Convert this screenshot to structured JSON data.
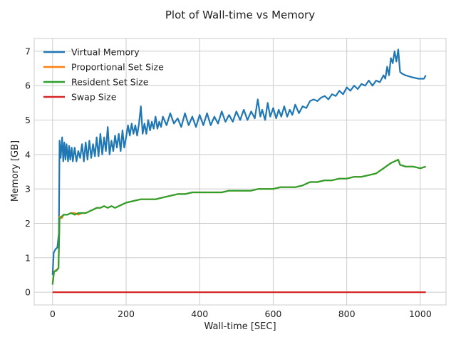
{
  "chart_data": {
    "type": "line",
    "title": "Plot of Wall-time vs Memory",
    "xlabel": "Wall-time [SEC]",
    "ylabel": "Memory [GB]",
    "xlim": [
      -50,
      1070
    ],
    "ylim": [
      -0.37,
      7.37
    ],
    "xticks": [
      0,
      200,
      400,
      600,
      800,
      1000
    ],
    "yticks": [
      0,
      1,
      2,
      3,
      4,
      5,
      6,
      7
    ],
    "grid": true,
    "legend_position": "top-left",
    "series": [
      {
        "name": "Virtual Memory",
        "color": "#1f77b4",
        "points": [
          [
            0,
            0.5
          ],
          [
            3,
            1.15
          ],
          [
            8,
            1.25
          ],
          [
            13,
            1.3
          ],
          [
            17,
            1.7
          ],
          [
            19,
            4.4
          ],
          [
            22,
            3.9
          ],
          [
            26,
            4.5
          ],
          [
            29,
            3.8
          ],
          [
            32,
            4.35
          ],
          [
            35,
            3.85
          ],
          [
            38,
            4.3
          ],
          [
            42,
            3.8
          ],
          [
            45,
            4.25
          ],
          [
            48,
            3.85
          ],
          [
            52,
            4.2
          ],
          [
            55,
            3.8
          ],
          [
            60,
            4.2
          ],
          [
            65,
            3.8
          ],
          [
            70,
            4.1
          ],
          [
            75,
            3.9
          ],
          [
            80,
            4.3
          ],
          [
            85,
            3.8
          ],
          [
            90,
            4.35
          ],
          [
            95,
            3.85
          ],
          [
            100,
            4.4
          ],
          [
            105,
            3.9
          ],
          [
            110,
            4.3
          ],
          [
            115,
            3.95
          ],
          [
            120,
            4.5
          ],
          [
            125,
            3.95
          ],
          [
            130,
            4.6
          ],
          [
            135,
            4.0
          ],
          [
            140,
            4.5
          ],
          [
            145,
            4.1
          ],
          [
            150,
            4.8
          ],
          [
            155,
            4.0
          ],
          [
            160,
            4.4
          ],
          [
            165,
            4.1
          ],
          [
            170,
            4.55
          ],
          [
            175,
            4.2
          ],
          [
            180,
            4.6
          ],
          [
            185,
            4.1
          ],
          [
            190,
            4.7
          ],
          [
            195,
            4.2
          ],
          [
            200,
            4.5
          ],
          [
            205,
            4.85
          ],
          [
            210,
            4.55
          ],
          [
            215,
            4.9
          ],
          [
            220,
            4.6
          ],
          [
            225,
            4.85
          ],
          [
            230,
            4.55
          ],
          [
            235,
            4.9
          ],
          [
            240,
            5.4
          ],
          [
            245,
            4.6
          ],
          [
            250,
            4.9
          ],
          [
            255,
            4.6
          ],
          [
            260,
            5.0
          ],
          [
            265,
            4.7
          ],
          [
            270,
            4.95
          ],
          [
            275,
            4.75
          ],
          [
            280,
            5.1
          ],
          [
            285,
            4.75
          ],
          [
            290,
            4.95
          ],
          [
            295,
            4.8
          ],
          [
            300,
            5.1
          ],
          [
            310,
            4.85
          ],
          [
            320,
            5.2
          ],
          [
            330,
            4.9
          ],
          [
            340,
            5.05
          ],
          [
            350,
            4.8
          ],
          [
            360,
            5.2
          ],
          [
            370,
            4.85
          ],
          [
            380,
            5.1
          ],
          [
            390,
            4.8
          ],
          [
            400,
            5.15
          ],
          [
            410,
            4.85
          ],
          [
            420,
            5.2
          ],
          [
            430,
            4.85
          ],
          [
            440,
            5.1
          ],
          [
            450,
            4.9
          ],
          [
            460,
            5.25
          ],
          [
            470,
            4.95
          ],
          [
            480,
            5.15
          ],
          [
            490,
            4.95
          ],
          [
            500,
            5.25
          ],
          [
            510,
            5.0
          ],
          [
            520,
            5.3
          ],
          [
            530,
            5.0
          ],
          [
            540,
            5.25
          ],
          [
            550,
            5.05
          ],
          [
            558,
            5.6
          ],
          [
            565,
            5.1
          ],
          [
            570,
            5.3
          ],
          [
            578,
            5.0
          ],
          [
            585,
            5.5
          ],
          [
            592,
            5.1
          ],
          [
            600,
            5.35
          ],
          [
            608,
            5.05
          ],
          [
            615,
            5.3
          ],
          [
            622,
            5.1
          ],
          [
            630,
            5.4
          ],
          [
            638,
            5.1
          ],
          [
            645,
            5.3
          ],
          [
            652,
            5.15
          ],
          [
            660,
            5.45
          ],
          [
            670,
            5.2
          ],
          [
            680,
            5.4
          ],
          [
            690,
            5.35
          ],
          [
            700,
            5.55
          ],
          [
            710,
            5.6
          ],
          [
            720,
            5.55
          ],
          [
            730,
            5.65
          ],
          [
            740,
            5.7
          ],
          [
            750,
            5.6
          ],
          [
            760,
            5.75
          ],
          [
            770,
            5.7
          ],
          [
            780,
            5.85
          ],
          [
            790,
            5.75
          ],
          [
            800,
            5.95
          ],
          [
            810,
            5.85
          ],
          [
            820,
            6.0
          ],
          [
            830,
            5.9
          ],
          [
            840,
            6.05
          ],
          [
            850,
            6.0
          ],
          [
            860,
            6.15
          ],
          [
            870,
            6.0
          ],
          [
            880,
            6.15
          ],
          [
            890,
            6.1
          ],
          [
            900,
            6.3
          ],
          [
            905,
            6.2
          ],
          [
            910,
            6.55
          ],
          [
            915,
            6.3
          ],
          [
            920,
            6.8
          ],
          [
            925,
            6.65
          ],
          [
            930,
            7.0
          ],
          [
            935,
            6.7
          ],
          [
            940,
            7.05
          ],
          [
            945,
            6.4
          ],
          [
            950,
            6.35
          ],
          [
            960,
            6.3
          ],
          [
            975,
            6.25
          ],
          [
            995,
            6.2
          ],
          [
            1005,
            6.2
          ],
          [
            1010,
            6.2
          ],
          [
            1015,
            6.3
          ]
        ]
      },
      {
        "name": "Proportional Set Size",
        "color": "#ff7f0e",
        "points": [
          [
            0,
            0.25
          ],
          [
            4,
            0.6
          ],
          [
            10,
            0.65
          ],
          [
            16,
            0.7
          ],
          [
            19,
            2.2
          ],
          [
            25,
            2.15
          ],
          [
            30,
            2.25
          ],
          [
            40,
            2.25
          ],
          [
            50,
            2.3
          ],
          [
            60,
            2.3
          ],
          [
            70,
            2.25
          ],
          [
            80,
            2.3
          ],
          [
            90,
            2.3
          ],
          [
            100,
            2.35
          ],
          [
            110,
            2.4
          ],
          [
            120,
            2.45
          ],
          [
            130,
            2.45
          ],
          [
            140,
            2.5
          ],
          [
            150,
            2.45
          ],
          [
            160,
            2.5
          ],
          [
            170,
            2.45
          ],
          [
            180,
            2.5
          ],
          [
            190,
            2.55
          ],
          [
            200,
            2.6
          ],
          [
            220,
            2.65
          ],
          [
            240,
            2.7
          ],
          [
            260,
            2.7
          ],
          [
            280,
            2.7
          ],
          [
            300,
            2.75
          ],
          [
            320,
            2.8
          ],
          [
            340,
            2.85
          ],
          [
            360,
            2.85
          ],
          [
            380,
            2.9
          ],
          [
            400,
            2.9
          ],
          [
            420,
            2.9
          ],
          [
            440,
            2.9
          ],
          [
            460,
            2.9
          ],
          [
            480,
            2.95
          ],
          [
            500,
            2.95
          ],
          [
            520,
            2.95
          ],
          [
            540,
            2.95
          ],
          [
            560,
            3.0
          ],
          [
            580,
            3.0
          ],
          [
            600,
            3.0
          ],
          [
            620,
            3.05
          ],
          [
            640,
            3.05
          ],
          [
            660,
            3.05
          ],
          [
            680,
            3.1
          ],
          [
            700,
            3.2
          ],
          [
            720,
            3.2
          ],
          [
            740,
            3.25
          ],
          [
            760,
            3.25
          ],
          [
            780,
            3.3
          ],
          [
            800,
            3.3
          ],
          [
            820,
            3.35
          ],
          [
            840,
            3.35
          ],
          [
            860,
            3.4
          ],
          [
            880,
            3.45
          ],
          [
            900,
            3.6
          ],
          [
            920,
            3.75
          ],
          [
            940,
            3.85
          ],
          [
            945,
            3.7
          ],
          [
            960,
            3.65
          ],
          [
            980,
            3.65
          ],
          [
            1000,
            3.6
          ],
          [
            1015,
            3.65
          ]
        ]
      },
      {
        "name": "Resident Set Size",
        "color": "#2ca02c",
        "points": [
          [
            0,
            0.22
          ],
          [
            4,
            0.6
          ],
          [
            10,
            0.62
          ],
          [
            16,
            0.7
          ],
          [
            19,
            2.15
          ],
          [
            25,
            2.2
          ],
          [
            30,
            2.25
          ],
          [
            40,
            2.25
          ],
          [
            50,
            2.3
          ],
          [
            60,
            2.25
          ],
          [
            70,
            2.3
          ],
          [
            80,
            2.3
          ],
          [
            90,
            2.3
          ],
          [
            100,
            2.35
          ],
          [
            110,
            2.4
          ],
          [
            120,
            2.45
          ],
          [
            130,
            2.45
          ],
          [
            140,
            2.5
          ],
          [
            150,
            2.45
          ],
          [
            160,
            2.5
          ],
          [
            170,
            2.45
          ],
          [
            180,
            2.5
          ],
          [
            190,
            2.55
          ],
          [
            200,
            2.6
          ],
          [
            220,
            2.65
          ],
          [
            240,
            2.7
          ],
          [
            260,
            2.7
          ],
          [
            280,
            2.7
          ],
          [
            300,
            2.75
          ],
          [
            320,
            2.8
          ],
          [
            340,
            2.85
          ],
          [
            360,
            2.85
          ],
          [
            380,
            2.9
          ],
          [
            400,
            2.9
          ],
          [
            420,
            2.9
          ],
          [
            440,
            2.9
          ],
          [
            460,
            2.9
          ],
          [
            480,
            2.95
          ],
          [
            500,
            2.95
          ],
          [
            520,
            2.95
          ],
          [
            540,
            2.95
          ],
          [
            560,
            3.0
          ],
          [
            580,
            3.0
          ],
          [
            600,
            3.0
          ],
          [
            620,
            3.05
          ],
          [
            640,
            3.05
          ],
          [
            660,
            3.05
          ],
          [
            680,
            3.1
          ],
          [
            700,
            3.2
          ],
          [
            720,
            3.2
          ],
          [
            740,
            3.25
          ],
          [
            760,
            3.25
          ],
          [
            780,
            3.3
          ],
          [
            800,
            3.3
          ],
          [
            820,
            3.35
          ],
          [
            840,
            3.35
          ],
          [
            860,
            3.4
          ],
          [
            880,
            3.45
          ],
          [
            900,
            3.6
          ],
          [
            920,
            3.75
          ],
          [
            940,
            3.85
          ],
          [
            945,
            3.7
          ],
          [
            960,
            3.65
          ],
          [
            980,
            3.65
          ],
          [
            1000,
            3.6
          ],
          [
            1015,
            3.65
          ]
        ]
      },
      {
        "name": "Swap Size",
        "color": "#d62728",
        "points": [
          [
            0,
            0
          ],
          [
            1015,
            0
          ]
        ]
      }
    ]
  }
}
